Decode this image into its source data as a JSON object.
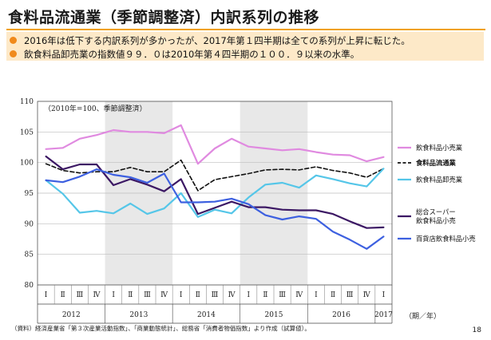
{
  "page": {
    "title": "食料品流通業（季節調整済）内訳系列の推移",
    "notes": [
      "2016年は低下する内訳系列が多かったが、2017年第１四半期は全ての系列が上昇に転じた。",
      "飲食料品卸売業の指数値９９．０は2010年第４四半期の１００．９以来の水準。"
    ],
    "footnote": "（資料）経済産業省「第３次産業活動指数」、「商業動態統計」、総務省「消費者物価指数」より作成（試算値）。",
    "page_number": "18"
  },
  "chart_data": {
    "type": "line",
    "annotation": "（2010年=100、季節調整済）",
    "x_unit_label": "（期／年）",
    "ylim": [
      80,
      110
    ],
    "yticks": [
      80,
      85,
      90,
      95,
      100,
      105,
      110
    ],
    "quarter_labels": [
      "Ⅰ",
      "Ⅱ",
      "Ⅲ",
      "Ⅳ",
      "Ⅰ",
      "Ⅱ",
      "Ⅲ",
      "Ⅳ",
      "Ⅰ",
      "Ⅱ",
      "Ⅲ",
      "Ⅳ",
      "Ⅰ",
      "Ⅱ",
      "Ⅲ",
      "Ⅳ",
      "Ⅰ",
      "Ⅱ",
      "Ⅲ",
      "Ⅳ",
      "Ⅰ"
    ],
    "year_labels": [
      {
        "label": "2012",
        "start": 0,
        "end": 3
      },
      {
        "label": "2013",
        "start": 4,
        "end": 7
      },
      {
        "label": "2014",
        "start": 8,
        "end": 11
      },
      {
        "label": "2015",
        "start": 12,
        "end": 15
      },
      {
        "label": "2016",
        "start": 16,
        "end": 19
      },
      {
        "label": "2017",
        "start": 20,
        "end": 20
      }
    ],
    "shaded_years": [
      1,
      3
    ],
    "grid": true,
    "series": [
      {
        "name": "飲食料品小売業",
        "color": "#e08ae0",
        "dash": "",
        "bold": false,
        "values": [
          102.2,
          102.4,
          103.9,
          104.5,
          105.3,
          105.0,
          105.0,
          104.8,
          106.1,
          99.8,
          102.3,
          103.9,
          102.6,
          102.3,
          102.0,
          102.2,
          101.7,
          101.3,
          101.2,
          100.2,
          100.9
        ]
      },
      {
        "name": "食料品流通業",
        "color": "#111111",
        "dash": "5,3",
        "bold": true,
        "values": [
          99.8,
          98.7,
          98.3,
          98.5,
          98.5,
          99.2,
          98.5,
          98.5,
          100.4,
          95.4,
          97.2,
          97.7,
          98.2,
          98.8,
          98.9,
          98.8,
          99.3,
          98.7,
          98.3,
          97.6,
          99.0
        ]
      },
      {
        "name": "飲食料品卸売業",
        "color": "#55c6e8",
        "dash": "",
        "bold": false,
        "values": [
          97.1,
          94.9,
          91.8,
          92.1,
          91.7,
          93.3,
          91.6,
          92.5,
          95.0,
          91.1,
          92.3,
          91.7,
          94.3,
          96.4,
          96.7,
          95.9,
          97.9,
          97.3,
          96.6,
          96.1,
          99.0
        ]
      },
      {
        "name": "総合スーパー\n飲食料品小売",
        "color": "#3c1864",
        "dash": "",
        "bold": false,
        "values": [
          101.0,
          98.9,
          99.7,
          99.7,
          96.3,
          97.3,
          96.4,
          95.3,
          97.3,
          91.6,
          92.6,
          93.6,
          92.7,
          92.7,
          92.3,
          92.2,
          92.2,
          91.6,
          90.4,
          89.3,
          89.4
        ]
      },
      {
        "name": "百貨店飲食料品小売",
        "color": "#3d60e0",
        "dash": "",
        "bold": false,
        "values": [
          97.1,
          96.8,
          97.7,
          98.9,
          98.0,
          97.6,
          96.7,
          98.2,
          93.5,
          93.5,
          93.6,
          94.1,
          93.2,
          91.4,
          90.7,
          91.2,
          90.8,
          88.7,
          87.4,
          85.9,
          87.9
        ]
      }
    ]
  }
}
